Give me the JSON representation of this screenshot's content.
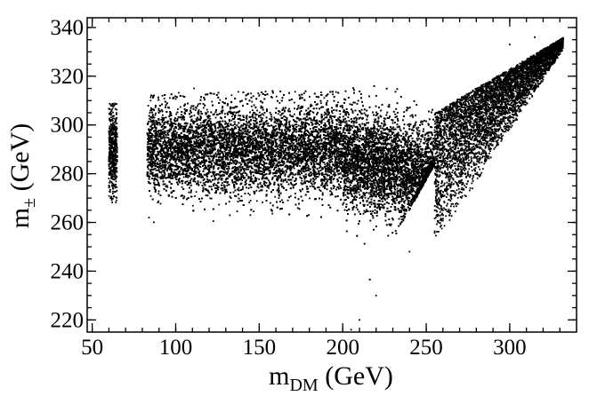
{
  "chart_data": {
    "type": "scatter",
    "title": "",
    "xlabel_main": "m",
    "xlabel_sub": "DM",
    "xlabel_unit": " (GeV)",
    "ylabel_main": "m",
    "ylabel_sub": "±",
    "ylabel_unit": " (GeV)",
    "xlim": [
      47,
      340
    ],
    "ylim": [
      215,
      344
    ],
    "x_ticks": [
      50,
      100,
      150,
      200,
      250,
      300
    ],
    "y_ticks": [
      220,
      240,
      260,
      280,
      300,
      320,
      340
    ],
    "x_minor_step": 10,
    "y_minor_step": 5,
    "grid": false,
    "legend": "none",
    "point_color": "#000000",
    "series": [
      {
        "regions": [
          {
            "x": [
              60,
              65
            ],
            "y_center": 289,
            "y_spread": 9,
            "y_min": 268,
            "y_max": 309,
            "weight": 0.02
          },
          {
            "x": [
              83,
              200
            ],
            "y_center": 290,
            "y_spread": 9,
            "y_min": 258,
            "y_max": 314,
            "weight": 0.5
          },
          {
            "x": [
              200,
              255
            ],
            "y_center_slope": [
              287,
              -0.15
            ],
            "y_spread": 10,
            "y_min_line": [
              200,
              215,
              1.25
            ],
            "y_max": 316,
            "weight": 0.28
          },
          {
            "x": [
              255,
              332
            ],
            "y_max_line": [
              255,
              305,
              0.4
            ],
            "y_min_line": [
              255,
              250,
              1.05
            ],
            "weight": 0.2
          }
        ],
        "sample_points": [
          [
            61,
            270
          ],
          [
            63,
            308
          ],
          [
            84,
            262
          ],
          [
            85,
            310
          ],
          [
            111,
            315
          ],
          [
            120,
            300
          ],
          [
            150,
            312
          ],
          [
            180,
            305
          ],
          [
            200,
            214
          ],
          [
            205,
            216
          ],
          [
            210,
            220
          ],
          [
            220,
            230
          ],
          [
            240,
            248
          ],
          [
            260,
            265
          ],
          [
            300,
            333
          ],
          [
            315,
            336
          ],
          [
            330,
            333
          ]
        ],
        "n_points": 26000
      }
    ]
  }
}
